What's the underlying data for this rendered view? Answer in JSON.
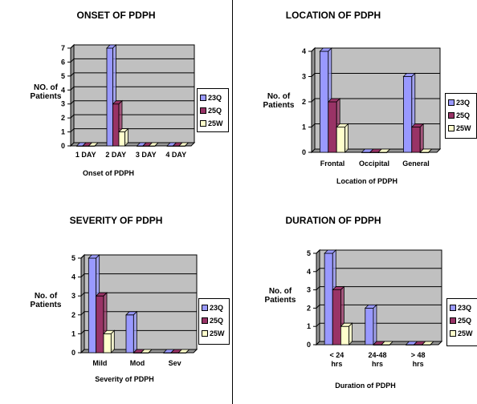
{
  "colors": {
    "s1": "#9999ff",
    "s2": "#993366",
    "s3": "#ffffcc",
    "wall": "#c0c0c0",
    "floor": "#969696"
  },
  "chart_data": [
    {
      "id": "onset",
      "type": "bar",
      "title": "ONSET OF PDPH",
      "ylabel": "NO. of Patients",
      "xlabel": "Onset of PDPH",
      "categories": [
        "1 DAY",
        "2 DAY",
        "3 DAY",
        "4 DAY"
      ],
      "ylim": [
        0,
        7
      ],
      "yticks": [
        "0",
        "1",
        "2",
        "3",
        "4",
        "5",
        "6",
        "7"
      ],
      "series": [
        {
          "name": "23Q",
          "values": [
            0,
            7,
            0,
            0
          ]
        },
        {
          "name": "25Q",
          "values": [
            0,
            3,
            0,
            0
          ]
        },
        {
          "name": "25W",
          "values": [
            0,
            1,
            0,
            0
          ]
        }
      ],
      "legend": "right",
      "grid": true
    },
    {
      "id": "location",
      "type": "bar",
      "title": "LOCATION OF PDPH",
      "ylabel": "No. of Patients",
      "xlabel": "Location of PDPH",
      "categories": [
        "Frontal",
        "Occipital",
        "General"
      ],
      "ylim": [
        0,
        4
      ],
      "yticks": [
        "0",
        "1",
        "2",
        "3",
        "4"
      ],
      "series": [
        {
          "name": "23Q",
          "values": [
            4,
            0,
            3
          ]
        },
        {
          "name": "25Q",
          "values": [
            2,
            0,
            1
          ]
        },
        {
          "name": "25W",
          "values": [
            1,
            0,
            0
          ]
        }
      ],
      "legend": "right",
      "grid": true
    },
    {
      "id": "severity",
      "type": "bar",
      "title": "SEVERITY OF PDPH",
      "ylabel": "No. of Patients",
      "xlabel": "Severity of PDPH",
      "categories": [
        "Mild",
        "Mod",
        "Sev"
      ],
      "ylim": [
        0,
        5
      ],
      "yticks": [
        "0",
        "1",
        "2",
        "3",
        "4",
        "5"
      ],
      "series": [
        {
          "name": "23Q",
          "values": [
            5,
            2,
            0
          ]
        },
        {
          "name": "25Q",
          "values": [
            3,
            0,
            0
          ]
        },
        {
          "name": "25W",
          "values": [
            1,
            0,
            0
          ]
        }
      ],
      "legend": "right",
      "grid": true
    },
    {
      "id": "duration",
      "type": "bar",
      "title": "DURATION OF PDPH",
      "ylabel": "No. of Patients",
      "xlabel": "Duration of PDPH",
      "categories": [
        "< 24 hrs",
        "24-48 hrs",
        "> 48 hrs"
      ],
      "category_lines": [
        [
          "< 24",
          "hrs"
        ],
        [
          "24-48",
          "hrs"
        ],
        [
          "> 48",
          "hrs"
        ]
      ],
      "ylim": [
        0,
        5
      ],
      "yticks": [
        "0",
        "1",
        "2",
        "3",
        "4",
        "5"
      ],
      "series": [
        {
          "name": "23Q",
          "values": [
            5,
            2,
            0
          ]
        },
        {
          "name": "25Q",
          "values": [
            3,
            0,
            0
          ]
        },
        {
          "name": "25W",
          "values": [
            1,
            0,
            0
          ]
        }
      ],
      "legend": "right",
      "grid": true
    }
  ]
}
